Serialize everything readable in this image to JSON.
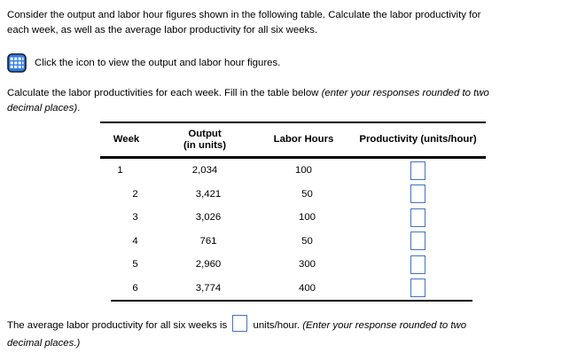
{
  "intro": {
    "text": "Consider the output and labor hour figures shown in the following table. Calculate the labor productivity for\neach week, as well as the average labor productivity for all six weeks."
  },
  "icon_row": {
    "icon": "table-grid-icon",
    "label": "Click the icon to view the output and labor hour figures."
  },
  "instruction": {
    "normal": "Calculate the labor productivities for each week. Fill in the table below ",
    "italic": "(enter your responses rounded to two\ndecimal places)",
    "suffix": "."
  },
  "table": {
    "headers": {
      "week": "Week",
      "output": "Output\n(in units)",
      "labor": "Labor Hours",
      "productivity": "Productivity (units/hour)"
    },
    "rows": [
      {
        "week": "1",
        "output": "2,034",
        "labor_hours": "100",
        "productivity_value": ""
      },
      {
        "week": "2",
        "output": "3,421",
        "labor_hours": "50",
        "productivity_value": ""
      },
      {
        "week": "3",
        "output": "3,026",
        "labor_hours": "100",
        "productivity_value": ""
      },
      {
        "week": "4",
        "output": "761",
        "labor_hours": "50",
        "productivity_value": ""
      },
      {
        "week": "5",
        "output": "2,960",
        "labor_hours": "300",
        "productivity_value": ""
      },
      {
        "week": "6",
        "output": "3,774",
        "labor_hours": "400",
        "productivity_value": ""
      }
    ]
  },
  "footer": {
    "before_box": "The average labor productivity for all six weeks is ",
    "average_value": "",
    "after_box": " units/hour. ",
    "italic": "(Enter your response rounded to two\ndecimal places.)"
  },
  "colors": {
    "input_border": "#4472c4",
    "icon_fill": "#2e7ce8",
    "icon_border": "#1a1d21",
    "icon_grid": "#ffffff",
    "rule": "#000000",
    "text": "#000000"
  }
}
